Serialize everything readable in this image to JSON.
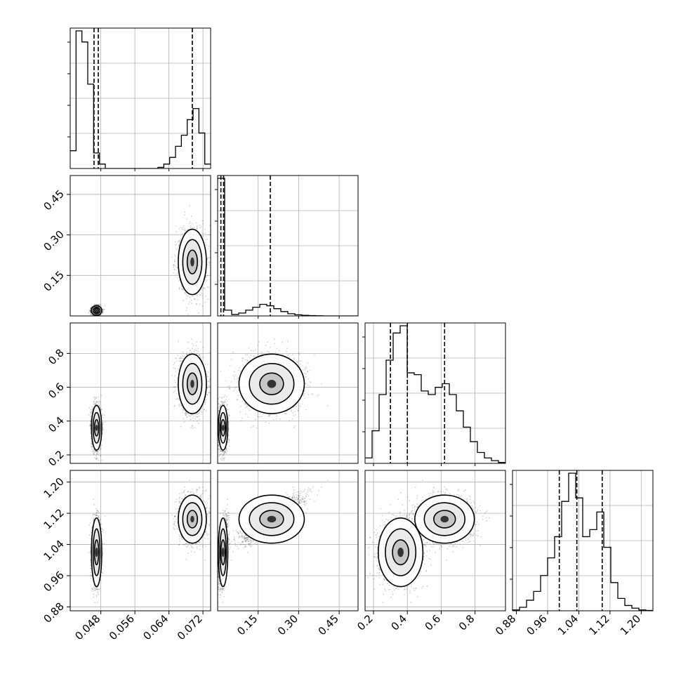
{
  "figure": {
    "type": "corner-plot"
  },
  "chart_data": {
    "type": "corner",
    "parameters": [
      {
        "range": [
          0.0408,
          0.0738
        ],
        "ticks": [
          0.048,
          0.056,
          0.064,
          0.072
        ],
        "tick_labels": [
          "0.048",
          "0.056",
          "0.064",
          "0.072"
        ],
        "quantiles": [
          0.0464,
          0.0474,
          0.0695
        ]
      },
      {
        "range": [
          0.0,
          0.52
        ],
        "ticks": [
          0.15,
          0.3,
          0.45
        ],
        "tick_labels": [
          "0.15",
          "0.30",
          "0.45"
        ],
        "quantiles": [
          0.012,
          0.022,
          0.195
        ]
      },
      {
        "range": [
          0.15,
          0.98
        ],
        "ticks": [
          0.2,
          0.4,
          0.6,
          0.8
        ],
        "tick_labels": [
          "0.2",
          "0.4",
          "0.6",
          "0.8"
        ],
        "quantiles": [
          0.3,
          0.4,
          0.62
        ]
      },
      {
        "range": [
          0.87,
          1.23
        ],
        "ticks": [
          0.88,
          0.96,
          1.04,
          1.12,
          1.2
        ],
        "tick_labels": [
          "0.88",
          "0.96",
          "1.04",
          "1.12",
          "1.20"
        ],
        "quantiles": [
          0.99,
          1.035,
          1.1
        ]
      }
    ],
    "histograms": [
      {
        "counts": [
          0.08,
          0.62,
          0.57,
          0.38,
          0.07,
          0.02,
          0,
          0,
          0,
          0,
          0,
          0,
          0,
          0,
          0,
          0.005,
          0.02,
          0.05,
          0.1,
          0.15,
          0.22,
          0.27,
          0.16,
          0.02
        ]
      },
      {
        "counts": [
          0.95,
          0.04,
          0.01,
          0.02,
          0.04,
          0.06,
          0.08,
          0.07,
          0.05,
          0.03,
          0.015,
          0.008,
          0.004,
          0.002,
          0.001,
          0,
          0,
          0,
          0,
          0
        ]
      },
      {
        "counts": [
          0.03,
          0.18,
          0.38,
          0.57,
          0.72,
          0.76,
          0.5,
          0.49,
          0.4,
          0.38,
          0.42,
          0.44,
          0.38,
          0.29,
          0.2,
          0.12,
          0.06,
          0.03,
          0.015,
          0.005
        ]
      },
      {
        "counts": [
          0.005,
          0.02,
          0.06,
          0.11,
          0.2,
          0.3,
          0.42,
          0.62,
          0.78,
          0.64,
          0.42,
          0.46,
          0.56,
          0.36,
          0.16,
          0.07,
          0.03,
          0.015,
          0.005,
          0.002
        ]
      }
    ],
    "clusters": [
      {
        "weight": 0.5,
        "mean": [
          0.047,
          0.02,
          0.36,
          1.02
        ],
        "std": [
          0.00055,
          0.008,
          0.06,
          0.04
        ],
        "corr_12": 0.0,
        "corr_23": 0.45
      },
      {
        "weight": 0.5,
        "mean": [
          0.0695,
          0.2,
          0.62,
          1.105
        ],
        "std": [
          0.0015,
          0.055,
          0.08,
          0.028
        ],
        "corr_12": 0.85,
        "corr_23": 0.3
      }
    ],
    "grid": true
  }
}
